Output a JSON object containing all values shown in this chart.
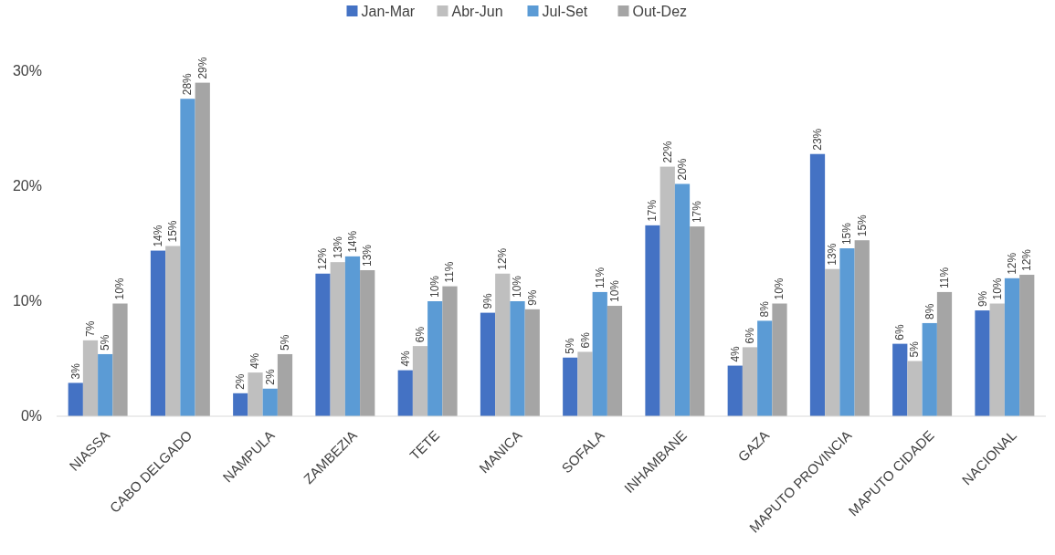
{
  "chart_data": {
    "type": "bar",
    "categories": [
      "NIASSA",
      "CABO DELGADO",
      "NAMPULA",
      "ZAMBEZIA",
      "TETE",
      "MANICA",
      "SOFALA",
      "INHAMBANE",
      "GAZA",
      "MAPUTO PROVINCIA",
      "MAPUTO CIDADE",
      "NACIONAL"
    ],
    "series": [
      {
        "name": "Jan-Mar",
        "color": "#4472c4",
        "values": [
          2.9,
          14.4,
          2.0,
          12.4,
          4.0,
          9.0,
          5.1,
          16.6,
          4.4,
          22.8,
          6.3,
          9.2
        ],
        "value_labels": [
          "3%",
          "14%",
          "2%",
          "12%",
          "4%",
          "9%",
          "5%",
          "17%",
          "4%",
          "23%",
          "6%",
          "9%"
        ]
      },
      {
        "name": "Abr-Jun",
        "color": "#bfbfbf",
        "values": [
          6.6,
          14.8,
          3.8,
          13.4,
          6.1,
          12.4,
          5.6,
          21.7,
          6.0,
          12.8,
          4.8,
          9.8
        ],
        "value_labels": [
          "7%",
          "15%",
          "4%",
          "13%",
          "6%",
          "12%",
          "6%",
          "22%",
          "6%",
          "13%",
          "5%",
          "10%"
        ]
      },
      {
        "name": "Jul-Set",
        "color": "#5b9bd5",
        "values": [
          5.4,
          27.6,
          2.4,
          13.9,
          10.0,
          10.0,
          10.8,
          20.2,
          8.3,
          14.6,
          8.1,
          12.0
        ],
        "value_labels": [
          "5%",
          "28%",
          "2%",
          "14%",
          "10%",
          "10%",
          "11%",
          "20%",
          "8%",
          "15%",
          "8%",
          "12%"
        ]
      },
      {
        "name": "Out-Dez",
        "color": "#a5a5a5",
        "values": [
          9.8,
          29.0,
          5.4,
          12.7,
          11.3,
          9.3,
          9.6,
          16.5,
          9.8,
          15.3,
          10.8,
          12.3
        ],
        "value_labels": [
          "10%",
          "29%",
          "5%",
          "13%",
          "11%",
          "9%",
          "10%",
          "17%",
          "10%",
          "15%",
          "11%",
          "12%"
        ]
      }
    ],
    "ylim": [
      0,
      30
    ],
    "yticks": [
      {
        "value": 0,
        "label": "0%"
      },
      {
        "value": 10,
        "label": "10%"
      },
      {
        "value": 20,
        "label": "20%"
      },
      {
        "value": 30,
        "label": "30%"
      }
    ],
    "legend": "top",
    "grid": false
  }
}
